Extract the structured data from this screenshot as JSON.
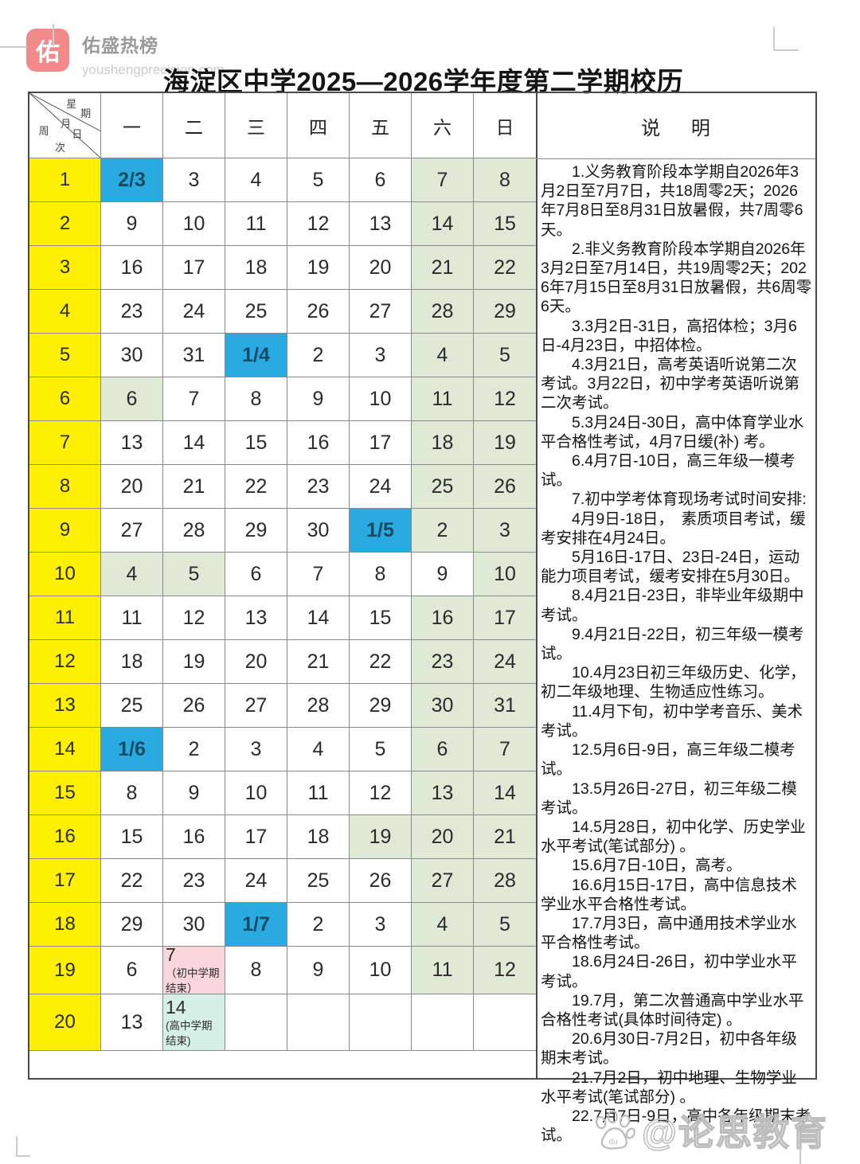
{
  "brand": {
    "badge_char": "佑",
    "name": "佑盛热榜",
    "url": "youshengprecision.com"
  },
  "title": "海淀区中学2025—2026学年度第二学期校历",
  "corner": {
    "chars": [
      "星",
      "期",
      "月",
      "日",
      "周",
      "次"
    ]
  },
  "calendar": {
    "day_headers": [
      "一",
      "二",
      "三",
      "四",
      "五",
      "六",
      "日"
    ],
    "weeks": [
      {
        "week": "1",
        "days": [
          {
            "t": "2/3",
            "c": "b"
          },
          {
            "t": "3"
          },
          {
            "t": "4"
          },
          {
            "t": "5"
          },
          {
            "t": "6"
          },
          {
            "t": "7",
            "c": "g"
          },
          {
            "t": "8",
            "c": "g"
          }
        ]
      },
      {
        "week": "2",
        "days": [
          {
            "t": "9"
          },
          {
            "t": "10"
          },
          {
            "t": "11"
          },
          {
            "t": "12"
          },
          {
            "t": "13"
          },
          {
            "t": "14",
            "c": "g"
          },
          {
            "t": "15",
            "c": "g"
          }
        ]
      },
      {
        "week": "3",
        "days": [
          {
            "t": "16"
          },
          {
            "t": "17"
          },
          {
            "t": "18"
          },
          {
            "t": "19"
          },
          {
            "t": "20"
          },
          {
            "t": "21",
            "c": "g"
          },
          {
            "t": "22",
            "c": "g"
          }
        ]
      },
      {
        "week": "4",
        "days": [
          {
            "t": "23"
          },
          {
            "t": "24"
          },
          {
            "t": "25"
          },
          {
            "t": "26"
          },
          {
            "t": "27"
          },
          {
            "t": "28",
            "c": "g"
          },
          {
            "t": "29",
            "c": "g"
          }
        ]
      },
      {
        "week": "5",
        "days": [
          {
            "t": "30"
          },
          {
            "t": "31"
          },
          {
            "t": "1/4",
            "c": "b"
          },
          {
            "t": "2"
          },
          {
            "t": "3"
          },
          {
            "t": "4",
            "c": "g"
          },
          {
            "t": "5",
            "c": "g"
          }
        ]
      },
      {
        "week": "6",
        "days": [
          {
            "t": "6",
            "c": "g"
          },
          {
            "t": "7"
          },
          {
            "t": "8"
          },
          {
            "t": "9"
          },
          {
            "t": "10"
          },
          {
            "t": "11",
            "c": "g"
          },
          {
            "t": "12",
            "c": "g"
          }
        ]
      },
      {
        "week": "7",
        "days": [
          {
            "t": "13"
          },
          {
            "t": "14"
          },
          {
            "t": "15"
          },
          {
            "t": "16"
          },
          {
            "t": "17"
          },
          {
            "t": "18",
            "c": "g"
          },
          {
            "t": "19",
            "c": "g"
          }
        ]
      },
      {
        "week": "8",
        "days": [
          {
            "t": "20"
          },
          {
            "t": "21"
          },
          {
            "t": "22"
          },
          {
            "t": "23"
          },
          {
            "t": "24"
          },
          {
            "t": "25",
            "c": "g"
          },
          {
            "t": "26",
            "c": "g"
          }
        ]
      },
      {
        "week": "9",
        "days": [
          {
            "t": "27"
          },
          {
            "t": "28"
          },
          {
            "t": "29"
          },
          {
            "t": "30"
          },
          {
            "t": "1/5",
            "c": "b"
          },
          {
            "t": "2",
            "c": "g"
          },
          {
            "t": "3",
            "c": "g"
          }
        ]
      },
      {
        "week": "10",
        "days": [
          {
            "t": "4",
            "c": "g"
          },
          {
            "t": "5",
            "c": "g"
          },
          {
            "t": "6"
          },
          {
            "t": "7"
          },
          {
            "t": "8"
          },
          {
            "t": "9"
          },
          {
            "t": "10",
            "c": "g"
          }
        ]
      },
      {
        "week": "11",
        "days": [
          {
            "t": "11"
          },
          {
            "t": "12"
          },
          {
            "t": "13"
          },
          {
            "t": "14"
          },
          {
            "t": "15"
          },
          {
            "t": "16",
            "c": "g"
          },
          {
            "t": "17",
            "c": "g"
          }
        ]
      },
      {
        "week": "12",
        "days": [
          {
            "t": "18"
          },
          {
            "t": "19"
          },
          {
            "t": "20"
          },
          {
            "t": "21"
          },
          {
            "t": "22"
          },
          {
            "t": "23",
            "c": "g"
          },
          {
            "t": "24",
            "c": "g"
          }
        ]
      },
      {
        "week": "13",
        "days": [
          {
            "t": "25"
          },
          {
            "t": "26"
          },
          {
            "t": "27"
          },
          {
            "t": "28"
          },
          {
            "t": "29"
          },
          {
            "t": "30",
            "c": "g"
          },
          {
            "t": "31",
            "c": "g"
          }
        ]
      },
      {
        "week": "14",
        "days": [
          {
            "t": "1/6",
            "c": "b"
          },
          {
            "t": "2"
          },
          {
            "t": "3"
          },
          {
            "t": "4"
          },
          {
            "t": "5"
          },
          {
            "t": "6",
            "c": "g"
          },
          {
            "t": "7",
            "c": "g"
          }
        ]
      },
      {
        "week": "15",
        "days": [
          {
            "t": "8"
          },
          {
            "t": "9"
          },
          {
            "t": "10"
          },
          {
            "t": "11"
          },
          {
            "t": "12"
          },
          {
            "t": "13",
            "c": "g"
          },
          {
            "t": "14",
            "c": "g"
          }
        ]
      },
      {
        "week": "16",
        "days": [
          {
            "t": "15"
          },
          {
            "t": "16"
          },
          {
            "t": "17"
          },
          {
            "t": "18"
          },
          {
            "t": "19",
            "c": "g"
          },
          {
            "t": "20",
            "c": "g"
          },
          {
            "t": "21",
            "c": "g"
          }
        ]
      },
      {
        "week": "17",
        "days": [
          {
            "t": "22"
          },
          {
            "t": "23"
          },
          {
            "t": "24"
          },
          {
            "t": "25"
          },
          {
            "t": "26"
          },
          {
            "t": "27",
            "c": "g"
          },
          {
            "t": "28",
            "c": "g"
          }
        ]
      },
      {
        "week": "18",
        "days": [
          {
            "t": "29"
          },
          {
            "t": "30"
          },
          {
            "t": "1/7",
            "c": "b"
          },
          {
            "t": "2"
          },
          {
            "t": "3"
          },
          {
            "t": "4",
            "c": "g"
          },
          {
            "t": "5",
            "c": "g"
          }
        ]
      },
      {
        "week": "19",
        "days": [
          {
            "t": "6"
          },
          {
            "t": "7",
            "sub": "（初中学期结束）",
            "c": "p"
          },
          {
            "t": "8"
          },
          {
            "t": "9"
          },
          {
            "t": "10"
          },
          {
            "t": "11",
            "c": "g"
          },
          {
            "t": "12",
            "c": "g"
          }
        ]
      },
      {
        "week": "20",
        "days": [
          {
            "t": "13"
          },
          {
            "t": "14",
            "sub": "(高中学期结束)",
            "c": "m"
          },
          {
            "t": ""
          },
          {
            "t": ""
          },
          {
            "t": ""
          },
          {
            "t": ""
          },
          {
            "t": ""
          }
        ]
      }
    ]
  },
  "notes": {
    "header": "说 明",
    "items": [
      "1.义务教育阶段本学期自2026年3月2日至7月7日，共18周零2天；2026年7月8日至8月31日放暑假，共7周零6天。",
      "2.非义务教育阶段本学期自2026年3月2日至7月14日，共19周零2天；2026年7月15日至8月31日放暑假，共6周零6天。",
      "3.3月2日-31日，高招体检；3月6日-4月23日，中招体检。",
      "4.3月21日，高考英语听说第二次考试。3月22日，初中学考英语听说第二次考试。",
      "5.3月24日-30日，高中体育学业水平合格性考试，4月7日缓(补) 考。",
      "6.4月7日-10日，高三年级一模考试。",
      "7.初中学考体育现场考试时间安排:",
      "4月9日-18日，　素质项目考试，缓考安排在4月24日。",
      "5月16日-17日、23日-24日，运动能力项目考试，缓考安排在5月30日。",
      "8.4月21日-23日，非毕业年级期中考试。",
      "9.4月21日-22日，初三年级一模考试。",
      "10.4月23日初三年级历史、化学，初二年级地理、生物适应性练习。",
      "11.4月下旬，初中学考音乐、美术考试。",
      "12.5月6日-9日，高三年级二模考试。",
      "13.5月26日-27日，初三年级二模考试。",
      "14.5月28日，初中化学、历史学业水平考试(笔试部分) 。",
      "15.6月7日-10日，高考。",
      "16.6月15日-17日，高中信息技术学业水平合格性考试。",
      "17.7月3日，高中通用技术学业水平合格性考试。",
      "18.6月24日-26日，初中学业水平考试。",
      "19.7月，第二次普通高中学业水平合格性考试(具体时间待定) 。",
      "20.6月30日-7月2日，初中各年级期末考试。",
      "21.7月2日，初中地理、生物学业水平考试(笔试部分) 。",
      "22.7月7日-9日，高中各年级期末考试。"
    ]
  },
  "social_watermark": {
    "handle": "@论思教育",
    "icon": "baidu-paw",
    "icon_text": "du"
  },
  "colors": {
    "week_yellow": "#fff000",
    "month_start_blue": "#29abe2",
    "holiday_green": "#dfead6",
    "junior_end_pink": "#f9d6db",
    "senior_end_mint": "#d7f0e7",
    "badge_pink": "#f28a8a"
  }
}
